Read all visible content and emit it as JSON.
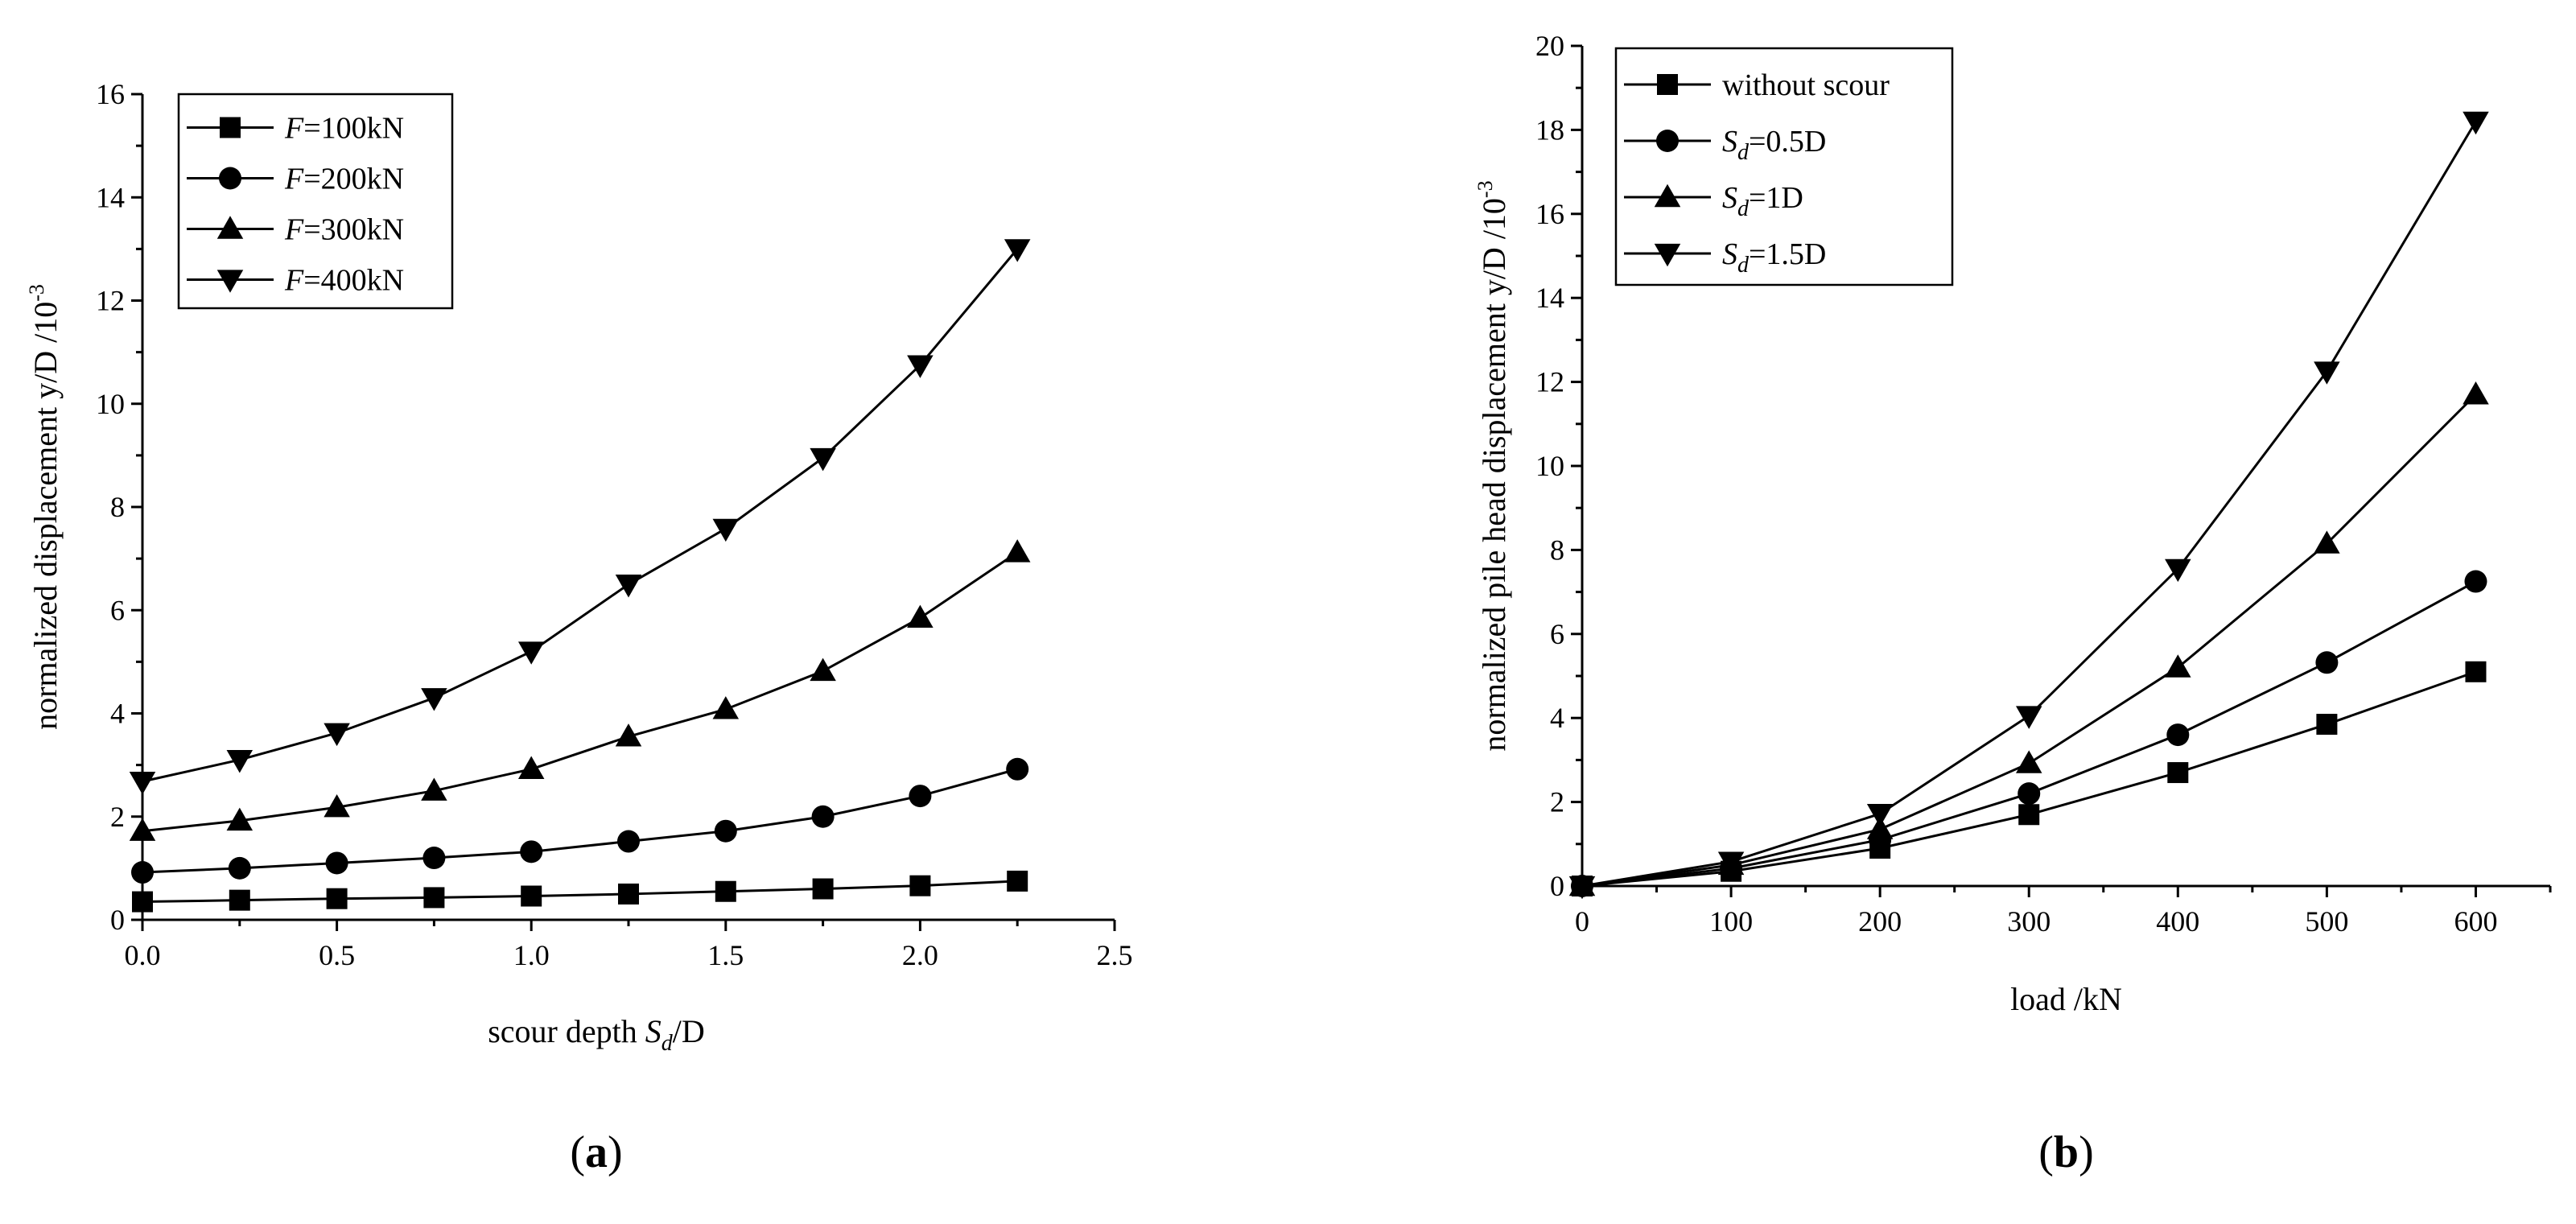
{
  "chart_data": [
    {
      "type": "line",
      "title": "",
      "panel_label": {
        "open": "(",
        "letter": "a",
        "close": ")"
      },
      "xlabel": {
        "pre": "scour depth ",
        "var": "S",
        "sub": "d",
        "post": "/D"
      },
      "ylabel": {
        "main": "normalized displacement y/D /10",
        "sup": "-3"
      },
      "xlim": [
        0,
        2.5
      ],
      "ylim": [
        0,
        16
      ],
      "xticks": [
        "0.0",
        "0.5",
        "1.0",
        "1.5",
        "2.0",
        "2.5"
      ],
      "yticks": [
        "0",
        "2",
        "4",
        "6",
        "8",
        "10",
        "12",
        "14",
        "16"
      ],
      "x": [
        0,
        0.25,
        0.5,
        0.75,
        1.0,
        1.25,
        1.5,
        1.75,
        2.0,
        2.25
      ],
      "legend_position": "top-left",
      "series": [
        {
          "name": "F=100kN",
          "label": {
            "var": "F",
            "rest": "=100kN"
          },
          "marker": "square",
          "values": [
            0.35,
            0.38,
            0.41,
            0.43,
            0.46,
            0.5,
            0.55,
            0.6,
            0.66,
            0.75
          ]
        },
        {
          "name": "F=200kN",
          "label": {
            "var": "F",
            "rest": "=200kN"
          },
          "marker": "circle",
          "values": [
            0.92,
            1.0,
            1.1,
            1.2,
            1.32,
            1.52,
            1.72,
            2.0,
            2.4,
            2.92
          ]
        },
        {
          "name": "F=300kN",
          "label": {
            "var": "F",
            "rest": "=300kN"
          },
          "marker": "triangle-up",
          "values": [
            1.72,
            1.92,
            2.18,
            2.5,
            2.92,
            3.55,
            4.08,
            4.82,
            5.85,
            7.12
          ]
        },
        {
          "name": "F=400kN",
          "label": {
            "var": "F",
            "rest": "=400kN"
          },
          "marker": "triangle-down",
          "values": [
            2.68,
            3.1,
            3.62,
            4.3,
            5.2,
            6.5,
            7.58,
            8.95,
            10.75,
            13.0
          ]
        }
      ]
    },
    {
      "type": "line",
      "title": "",
      "panel_label": {
        "open": "(",
        "letter": "b",
        "close": ")"
      },
      "xlabel": {
        "pre": "load /kN",
        "var": "",
        "sub": "",
        "post": ""
      },
      "ylabel": {
        "main": "normalized pile head displacement y/D /10",
        "sup": "-3"
      },
      "xlim": [
        0,
        650
      ],
      "ylim": [
        0,
        20
      ],
      "xticks": [
        "0",
        "100",
        "200",
        "300",
        "400",
        "500",
        "600"
      ],
      "yticks": [
        "0",
        "2",
        "4",
        "6",
        "8",
        "10",
        "12",
        "14",
        "16",
        "18",
        "20"
      ],
      "x": [
        0,
        100,
        200,
        300,
        400,
        500,
        600
      ],
      "legend_position": "top-left",
      "series": [
        {
          "name": "without scour",
          "label": {
            "var": "",
            "rest": "without scour"
          },
          "marker": "square",
          "values": [
            0,
            0.35,
            0.9,
            1.7,
            2.7,
            3.85,
            5.1
          ]
        },
        {
          "name": "Sd=0.5D",
          "label": {
            "var": "S",
            "sub": "d",
            "rest": "=0.5D"
          },
          "marker": "circle",
          "values": [
            0,
            0.42,
            1.1,
            2.2,
            3.6,
            5.32,
            7.25
          ]
        },
        {
          "name": "Sd=1D",
          "label": {
            "var": "S",
            "sub": "d",
            "rest": "=1D"
          },
          "marker": "triangle-up",
          "values": [
            0,
            0.5,
            1.35,
            2.92,
            5.2,
            8.15,
            11.7
          ]
        },
        {
          "name": "Sd=1.5D",
          "label": {
            "var": "S",
            "sub": "d",
            "rest": "=1.5D"
          },
          "marker": "triangle-down",
          "values": [
            0,
            0.58,
            1.72,
            4.05,
            7.55,
            12.25,
            18.2
          ]
        }
      ]
    }
  ]
}
